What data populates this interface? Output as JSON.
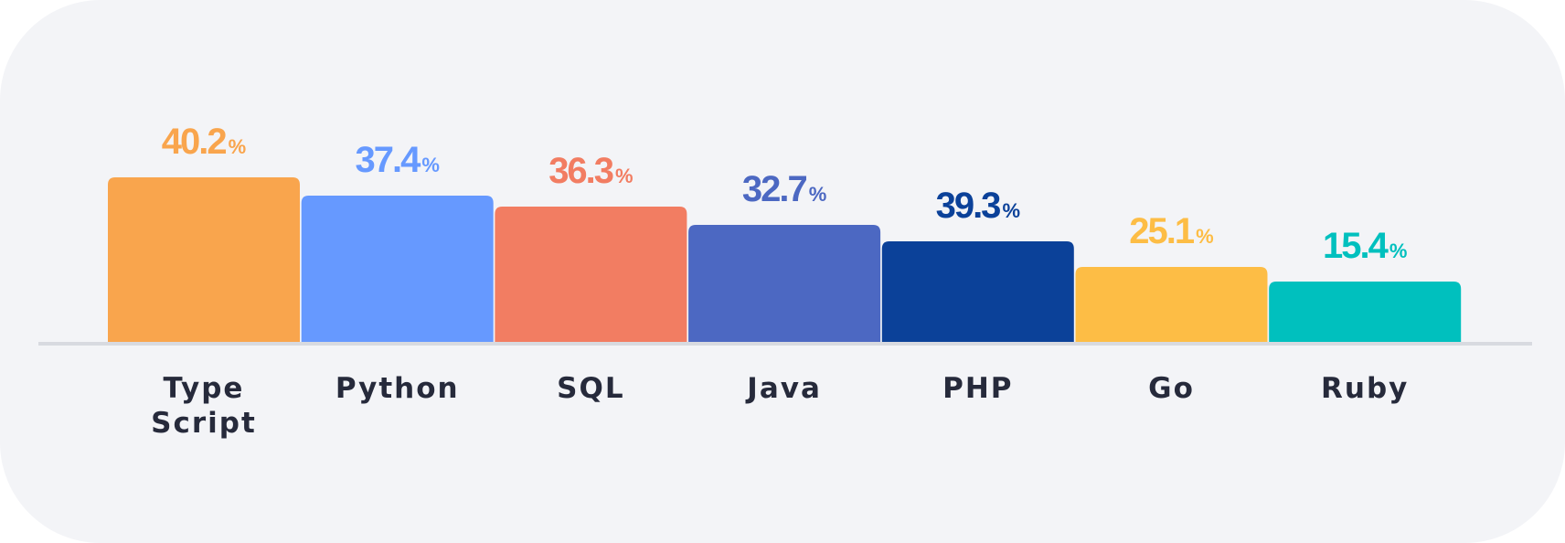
{
  "chart_data": {
    "type": "bar",
    "categories": [
      [
        "Type",
        "Script"
      ],
      [
        "Python"
      ],
      [
        "SQL"
      ],
      [
        "Java"
      ],
      [
        "PHP"
      ],
      [
        "Go"
      ],
      [
        "Ruby"
      ]
    ],
    "values": [
      40.2,
      37.4,
      36.3,
      32.7,
      39.3,
      25.1,
      15.4
    ],
    "value_suffix": "%",
    "colors": [
      "#f9a54d",
      "#6699ff",
      "#f27d62",
      "#4c68c2",
      "#0b4199",
      "#fdbd45",
      "#00c0be"
    ],
    "title": "",
    "xlabel": "",
    "ylabel": "",
    "grid": false,
    "legend": "none"
  }
}
